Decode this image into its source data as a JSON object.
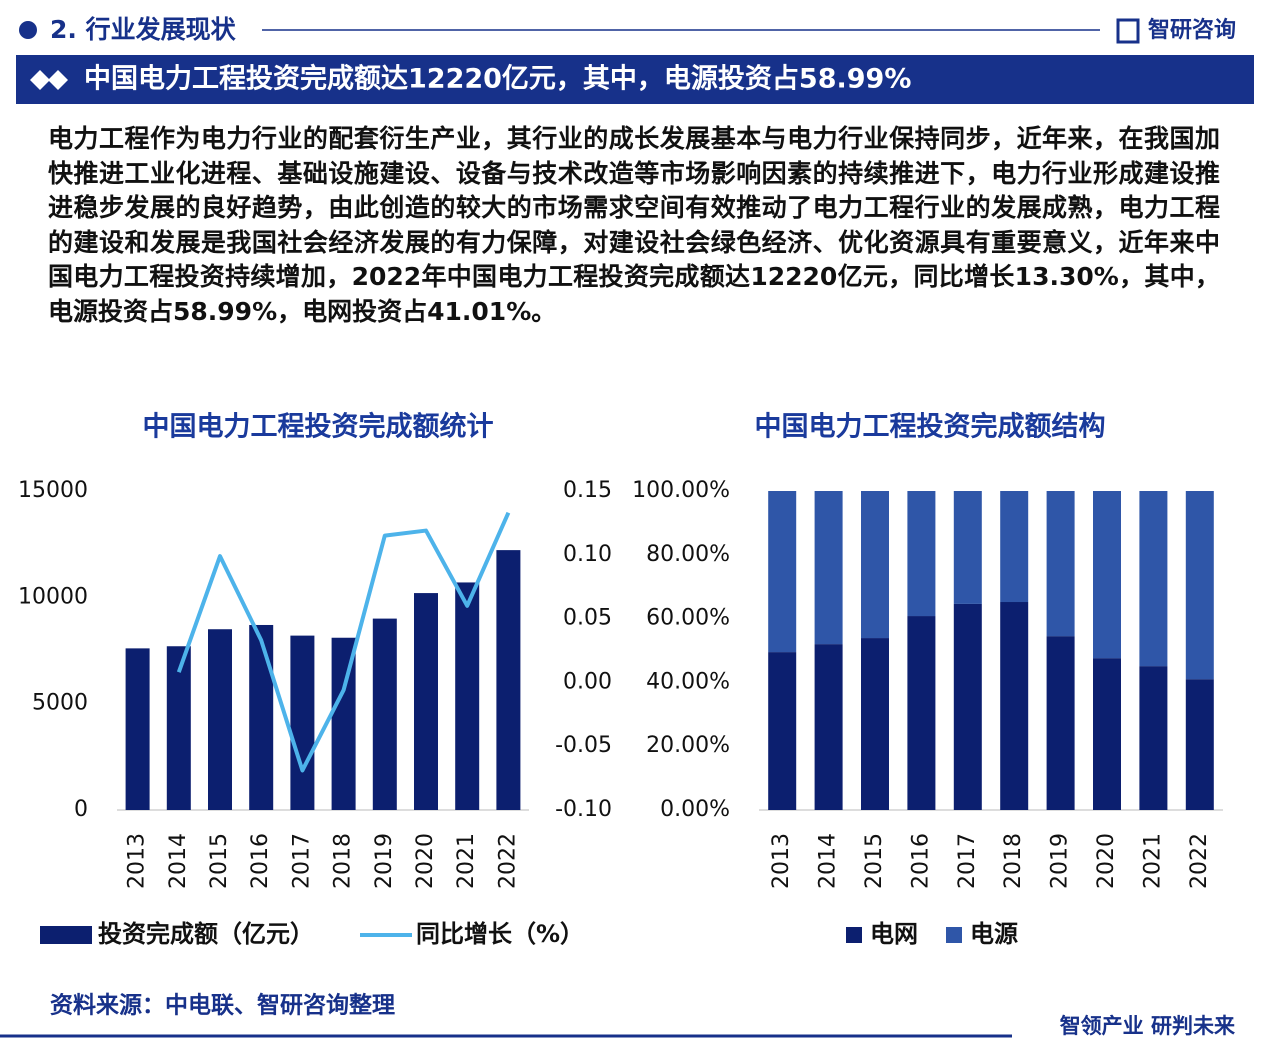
{
  "header": {
    "section": "2. 行业发展现状",
    "brand": "智研咨询",
    "banner": "中国电力工程投资完成额达12220亿元，其中，电源投资占58.99%"
  },
  "body": "电力工程作为电力行业的配套衍生产业，其行业的成长发展基本与电力行业保持同步，近年来，在我国加快推进工业化进程、基础设施建设、设备与技术改造等市场影响因素的持续推进下，电力行业形成建设推进稳步发展的良好趋势，由此创造的较大的市场需求空间有效推动了电力工程行业的发展成熟，电力工程的建设和发展是我国社会经济发展的有力保障，对建设社会绿色经济、优化资源具有重要意义，近年来中国电力工程投资持续增加，2022年中国电力工程投资完成额达12220亿元，同比增长13.30%，其中，电源投资占58.99%，电网投资占41.01%。",
  "chart_data": [
    {
      "type": "combo",
      "title": "中国电力工程投资完成额统计",
      "categories": [
        "2013",
        "2014",
        "2015",
        "2016",
        "2017",
        "2018",
        "2019",
        "2020",
        "2021",
        "2022"
      ],
      "series": [
        {
          "name": "投资完成额（亿元）",
          "type": "bar",
          "color": "#0c1f6f",
          "values": [
            7600,
            7700,
            8500,
            8700,
            8200,
            8100,
            9000,
            10200,
            10700,
            12220
          ]
        },
        {
          "name": "同比增长（%）",
          "type": "line",
          "color": "#4db3ea",
          "axis": "y2",
          "values": [
            null,
            0.008,
            0.099,
            0.033,
            -0.069,
            -0.006,
            0.115,
            0.119,
            0.06,
            0.133
          ]
        }
      ],
      "ylim": [
        0,
        15000
      ],
      "yticks": [
        0,
        5000,
        10000,
        15000
      ],
      "y2lim": [
        -0.1,
        0.15
      ],
      "y2ticks": [
        {
          "value": -0.1,
          "label": "-0.10"
        },
        -0.05,
        {
          "value": 0,
          "label": "0.00"
        },
        0.05,
        {
          "value": 0.1,
          "label": "0.10"
        },
        0.15
      ]
    },
    {
      "type": "bar",
      "stacked": true,
      "title": "中国电力工程投资完成额结构",
      "categories": [
        "2013",
        "2014",
        "2015",
        "2016",
        "2017",
        "2018",
        "2019",
        "2020",
        "2021",
        "2022"
      ],
      "series": [
        {
          "name": "电网",
          "color": "#0c1f6f",
          "values": [
            49.5,
            52.0,
            53.9,
            60.8,
            64.6,
            65.2,
            54.5,
            47.6,
            45.1,
            41.01
          ]
        },
        {
          "name": "电源",
          "color": "#2f56a8",
          "values": [
            50.5,
            48.0,
            46.1,
            39.2,
            35.4,
            34.8,
            45.5,
            52.4,
            54.9,
            58.99
          ]
        }
      ],
      "ylim": [
        0,
        100
      ],
      "yticks": [
        {
          "value": 0,
          "label": "0.00%"
        },
        {
          "value": 20,
          "label": "20.00%"
        },
        {
          "value": 40,
          "label": "40.00%"
        },
        {
          "value": 60,
          "label": "60.00%"
        },
        {
          "value": 80,
          "label": "80.00%"
        },
        {
          "value": 100,
          "label": "100.00%"
        }
      ]
    }
  ],
  "footer": {
    "source": "资料来源：中电联、智研咨询整理",
    "slogan": "智领产业 研判未来"
  }
}
